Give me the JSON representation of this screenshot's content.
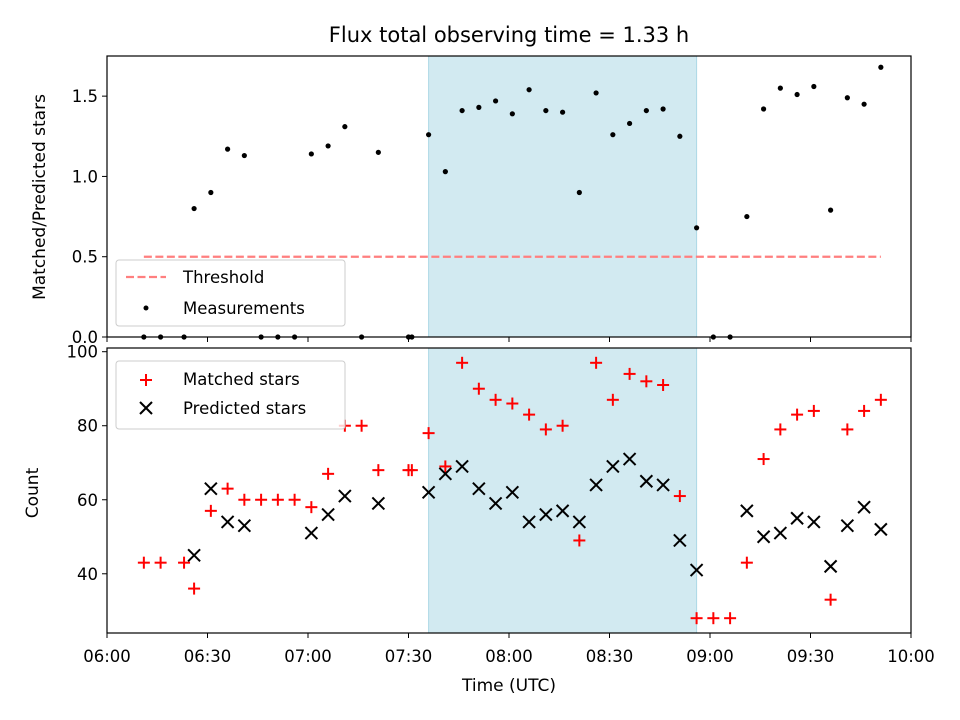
{
  "chart_data": [
    {
      "type": "scatter",
      "title": "Flux total observing time = 1.33 h",
      "ylabel": "Matched/Predicted stars",
      "ylim": [
        0,
        1.75
      ],
      "yticks": [
        "0.0",
        "0.5",
        "1.0",
        "1.5"
      ],
      "shaded_interval": [
        "07:36",
        "08:56"
      ],
      "shade_color": "#add8e6",
      "threshold": {
        "name": "Threshold",
        "value": 0.5,
        "x_start": "06:11",
        "x_end": "09:51",
        "color": "#ff7f7f",
        "style": "dashed"
      },
      "series": [
        {
          "name": "Measurements",
          "color": "#000000",
          "marker": "dot",
          "x": [
            "06:11",
            "06:16",
            "06:23",
            "06:26",
            "06:31",
            "06:36",
            "06:41",
            "06:46",
            "06:51",
            "06:56",
            "07:01",
            "07:06",
            "07:11",
            "07:16",
            "07:21",
            "07:30",
            "07:31",
            "07:36",
            "07:41",
            "07:46",
            "07:51",
            "07:56",
            "08:01",
            "08:06",
            "08:11",
            "08:16",
            "08:21",
            "08:26",
            "08:31",
            "08:36",
            "08:41",
            "08:46",
            "08:51",
            "08:56",
            "09:01",
            "09:06",
            "09:11",
            "09:16",
            "09:21",
            "09:26",
            "09:31",
            "09:36",
            "09:41",
            "09:46",
            "09:51"
          ],
          "y": [
            0,
            0,
            0,
            0.8,
            0.9,
            1.17,
            1.13,
            0,
            0,
            0,
            1.14,
            1.19,
            1.31,
            0,
            1.15,
            0,
            0,
            1.26,
            1.03,
            1.41,
            1.43,
            1.47,
            1.39,
            1.54,
            1.41,
            1.4,
            0.9,
            1.52,
            1.26,
            1.33,
            1.41,
            1.42,
            1.25,
            0.68,
            0,
            0,
            0.75,
            1.42,
            1.55,
            1.51,
            1.56,
            0.79,
            1.49,
            1.45,
            1.68
          ]
        }
      ],
      "legend": "lower-left"
    },
    {
      "type": "scatter",
      "xlabel": "Time (UTC)",
      "ylabel": "Count",
      "ylim": [
        24,
        101
      ],
      "yticks": [
        "40",
        "60",
        "80",
        "100"
      ],
      "xticks": [
        "06:00",
        "06:30",
        "07:00",
        "07:30",
        "08:00",
        "08:30",
        "09:00",
        "09:30",
        "10:00"
      ],
      "xlim": [
        "06:00",
        "10:00"
      ],
      "series": [
        {
          "name": "Matched stars",
          "color": "#ff0000",
          "marker": "plus",
          "x": [
            "06:11",
            "06:16",
            "06:23",
            "06:26",
            "06:31",
            "06:36",
            "06:41",
            "06:46",
            "06:51",
            "06:56",
            "07:01",
            "07:06",
            "07:11",
            "07:16",
            "07:21",
            "07:30",
            "07:31",
            "07:36",
            "07:41",
            "07:46",
            "07:51",
            "07:56",
            "08:01",
            "08:06",
            "08:11",
            "08:16",
            "08:21",
            "08:26",
            "08:31",
            "08:36",
            "08:41",
            "08:46",
            "08:51",
            "08:56",
            "09:01",
            "09:06",
            "09:11",
            "09:16",
            "09:21",
            "09:26",
            "09:31",
            "09:36",
            "09:41",
            "09:46",
            "09:51"
          ],
          "y": [
            43,
            43,
            43,
            36,
            57,
            63,
            60,
            60,
            60,
            60,
            58,
            67,
            80,
            80,
            68,
            68,
            68,
            78,
            69,
            97,
            90,
            87,
            86,
            83,
            79,
            80,
            49,
            97,
            87,
            94,
            92,
            91,
            61,
            28,
            28,
            28,
            43,
            71,
            79,
            83,
            84,
            33,
            79,
            84,
            87
          ]
        },
        {
          "name": "Predicted stars",
          "color": "#000000",
          "marker": "x",
          "x": [
            "06:26",
            "06:31",
            "06:36",
            "06:41",
            "07:01",
            "07:06",
            "07:11",
            "07:21",
            "07:36",
            "07:41",
            "07:46",
            "07:51",
            "07:56",
            "08:01",
            "08:06",
            "08:11",
            "08:16",
            "08:21",
            "08:26",
            "08:31",
            "08:36",
            "08:41",
            "08:46",
            "08:51",
            "08:56",
            "09:11",
            "09:16",
            "09:21",
            "09:26",
            "09:31",
            "09:36",
            "09:41",
            "09:46",
            "09:51"
          ],
          "y": [
            45,
            63,
            54,
            53,
            51,
            56,
            61,
            59,
            62,
            67,
            69,
            63,
            59,
            62,
            54,
            56,
            57,
            54,
            64,
            69,
            71,
            65,
            64,
            49,
            41,
            57,
            50,
            51,
            55,
            54,
            42,
            53,
            58,
            52
          ]
        }
      ],
      "legend": "upper-left"
    }
  ]
}
